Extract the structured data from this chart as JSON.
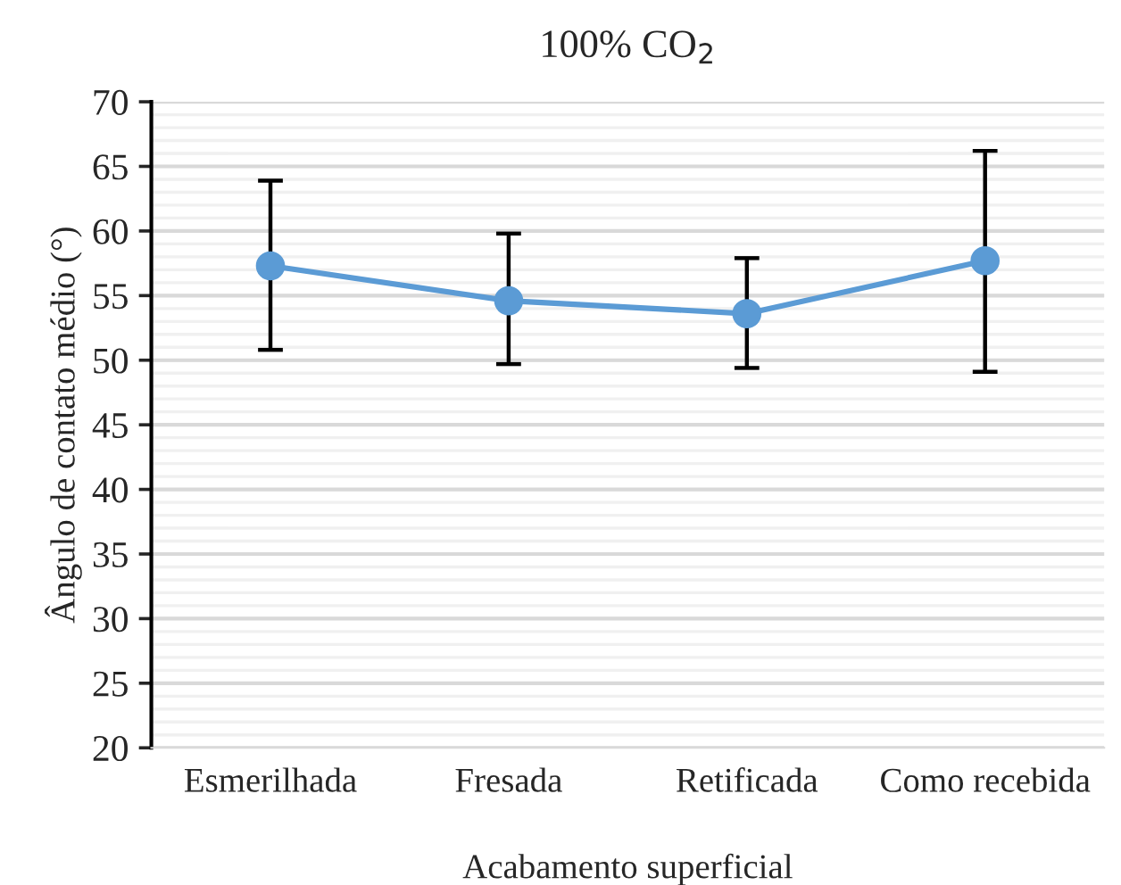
{
  "chart_data": {
    "type": "line",
    "title": "100% CO$_{2}$",
    "xlabel": "Acabamento superficial",
    "ylabel": "Ângulo de contato médio (°)",
    "categories": [
      "Esmerilhada",
      "Fresada",
      "Retificada",
      "Como recebida"
    ],
    "series": [
      {
        "color": "#5b9bd5",
        "values": [
          57.3,
          54.6,
          53.6,
          57.7
        ],
        "errors": [
          [
            50.8,
            63.9
          ],
          [
            49.7,
            59.8
          ],
          [
            49.4,
            57.9
          ],
          [
            49.1,
            66.2
          ]
        ]
      }
    ],
    "ylim": [
      20,
      70
    ],
    "yticks": [
      20,
      25,
      30,
      35,
      40,
      45,
      50,
      55,
      60,
      65,
      70
    ],
    "grid": "y",
    "marker": "circle",
    "line_style": "solid",
    "legend": false
  }
}
